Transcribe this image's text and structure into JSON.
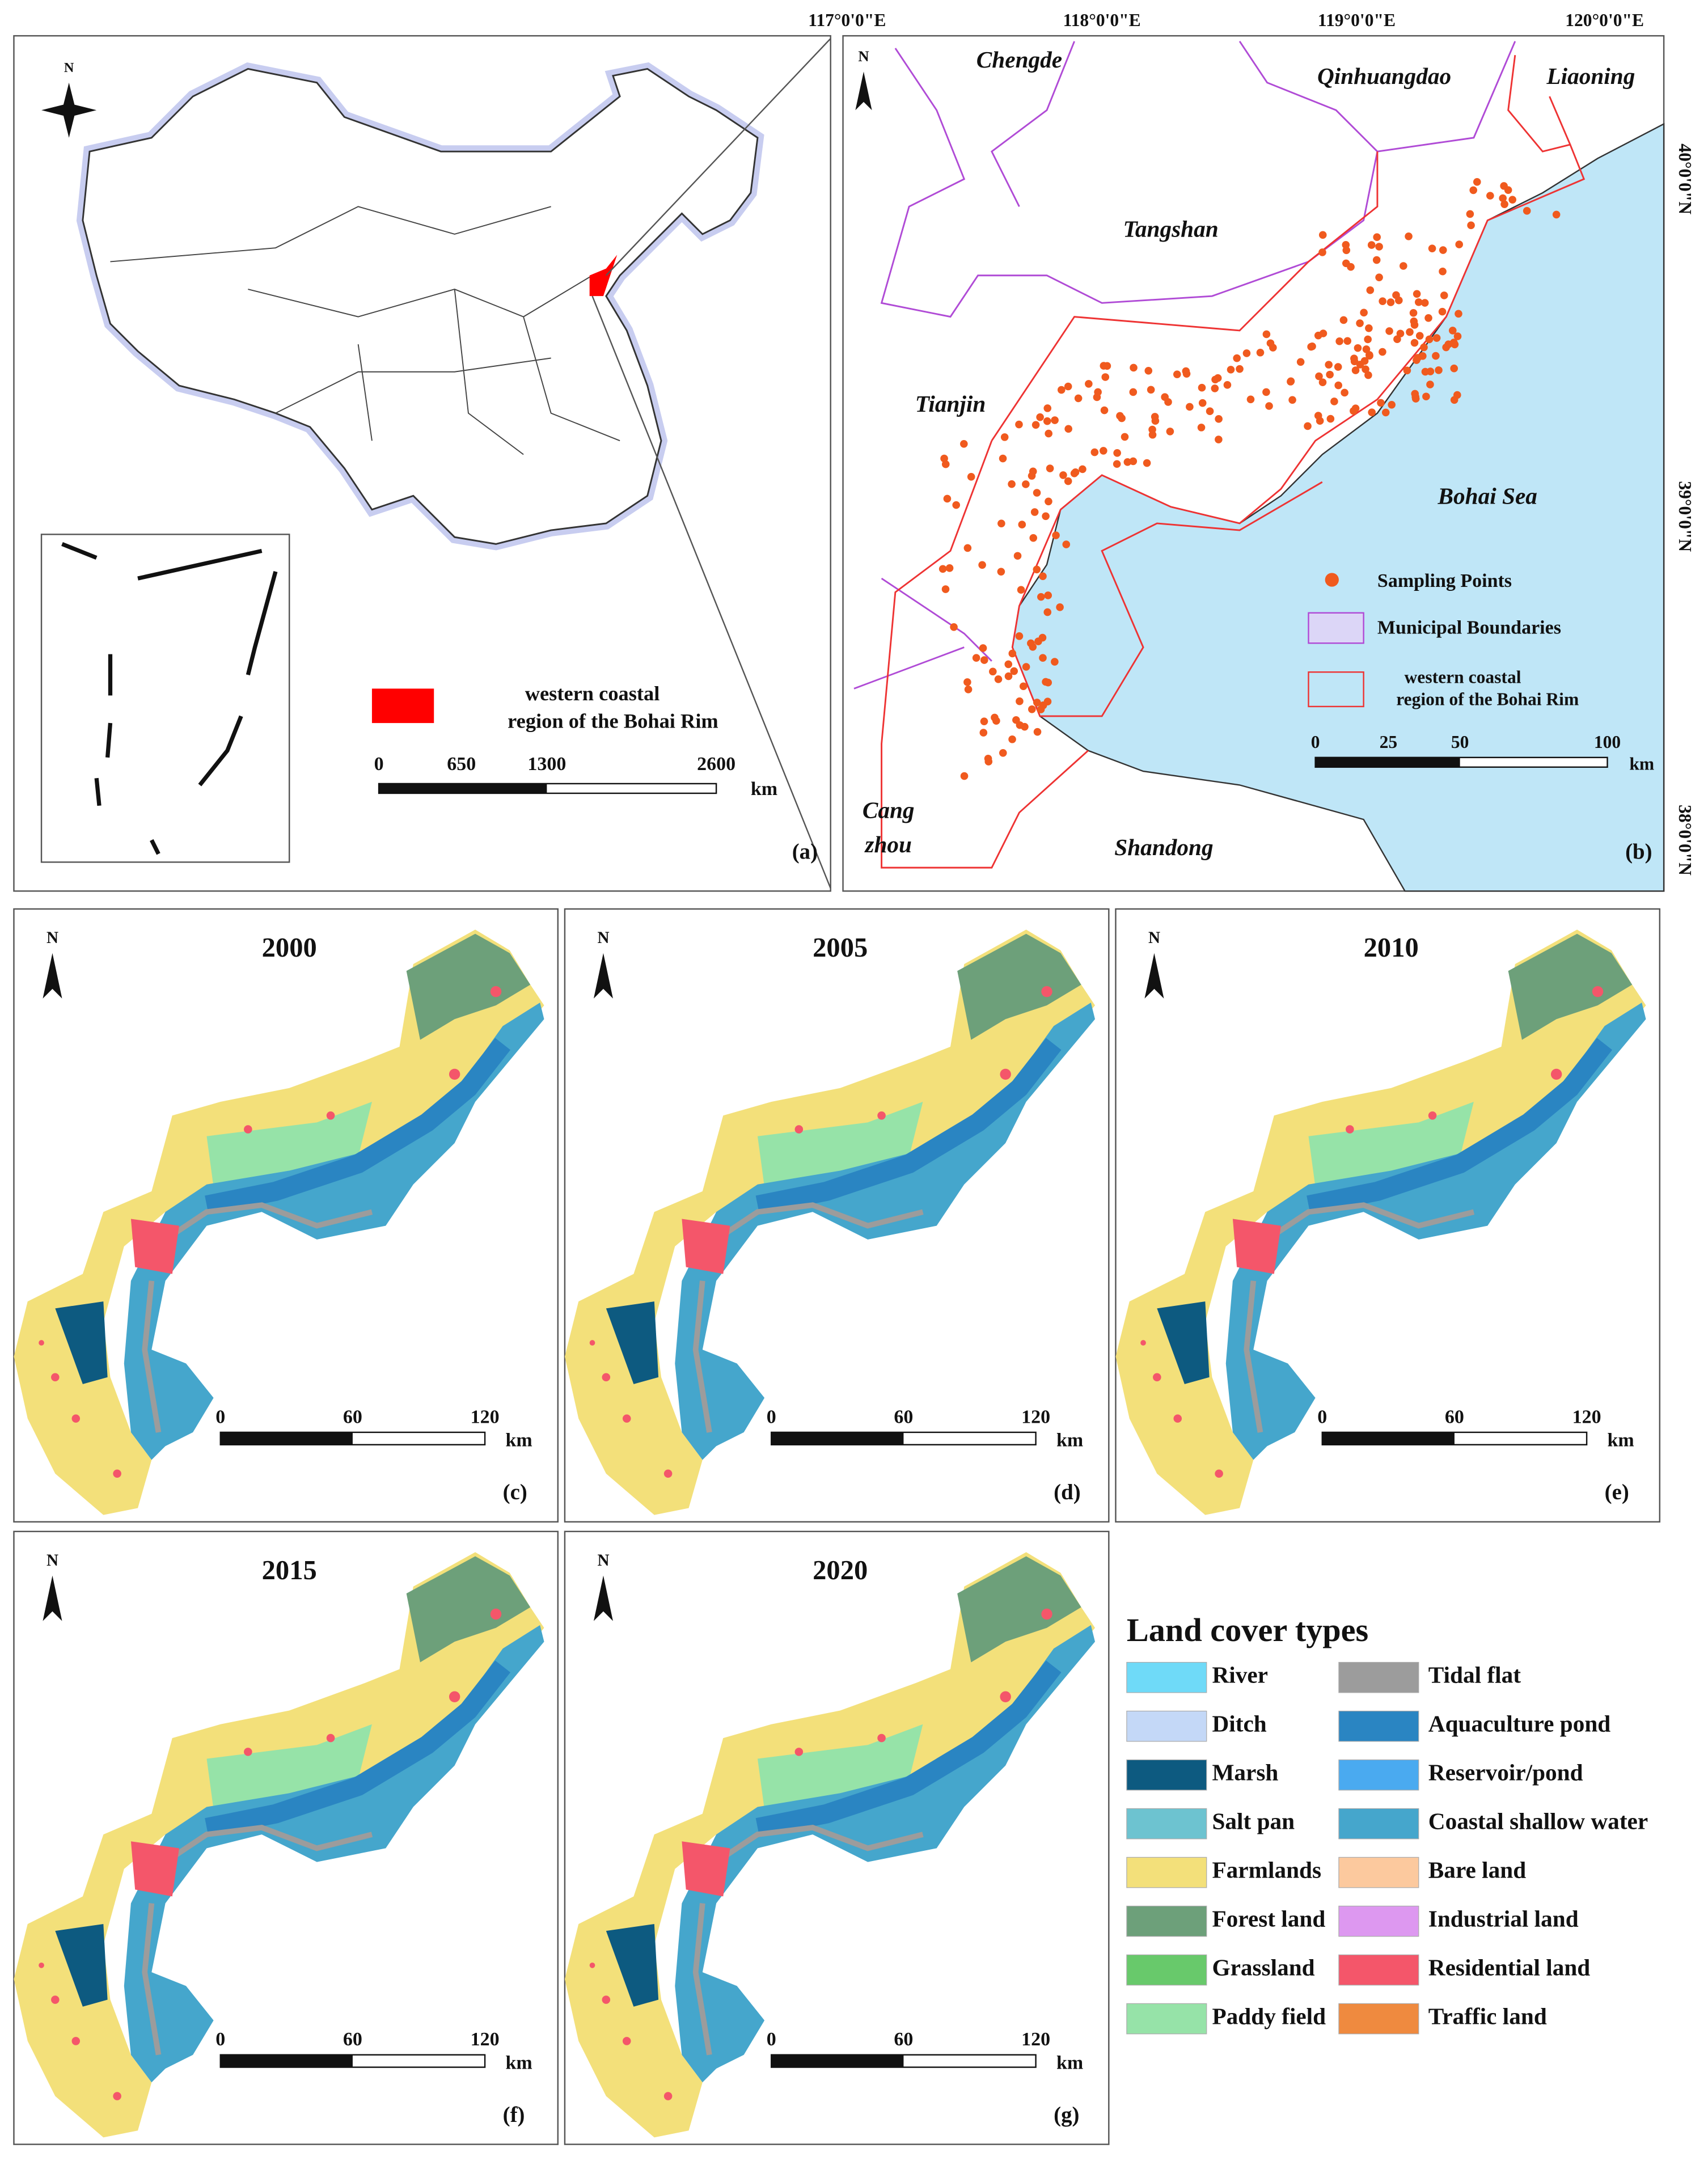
{
  "panel_a": {
    "north": "N",
    "legend_label": [
      "western coastal",
      "region of the Bohai Rim"
    ],
    "scale_labels": [
      "0",
      "650",
      "1300",
      "2600"
    ],
    "scale_unit": "km",
    "label": "(a)"
  },
  "panel_b": {
    "north": "N",
    "longitudes": [
      "117°0'0\"E",
      "118°0'0\"E",
      "119°0'0\"E",
      "120°0'0\"E"
    ],
    "latitudes": [
      "40°0'0\"N",
      "39°0'0\"N",
      "38°0'0\"N"
    ],
    "places": [
      "Chengde",
      "Qinhuangdao",
      "Liaoning",
      "Tangshan",
      "Tianjin",
      "Bohai Sea",
      "Cang",
      "zhou",
      "Shandong"
    ],
    "legend": [
      "Sampling Points",
      "Municipal Boundaries",
      "western coastal",
      "region of the Bohai Rim"
    ],
    "scale_labels": [
      "0",
      "25",
      "50",
      "100"
    ],
    "scale_unit": "km",
    "label": "(b)"
  },
  "maps": [
    {
      "year": "2000",
      "label": "(c)"
    },
    {
      "year": "2005",
      "label": "(d)"
    },
    {
      "year": "2010",
      "label": "(e)"
    },
    {
      "year": "2015",
      "label": "(f)"
    },
    {
      "year": "2020",
      "label": "(g)"
    }
  ],
  "map_scale": {
    "north": "N",
    "labels": [
      "0",
      "60",
      "120"
    ],
    "unit": "km"
  },
  "legend": {
    "title": "Land cover types",
    "items": [
      {
        "name": "River",
        "color": "#6fdaf8"
      },
      {
        "name": "Ditch",
        "color": "#c4d8f7"
      },
      {
        "name": "Marsh",
        "color": "#0d5a80"
      },
      {
        "name": "Salt pan",
        "color": "#6dc3d0"
      },
      {
        "name": "Farmlands",
        "color": "#f3e07a"
      },
      {
        "name": "Forest land",
        "color": "#6da07a"
      },
      {
        "name": "Grassland",
        "color": "#68c96b"
      },
      {
        "name": "Paddy field",
        "color": "#96e3a8"
      },
      {
        "name": "Tidal flat",
        "color": "#9c9c9c"
      },
      {
        "name": "Aquaculture pond",
        "color": "#2a85c2"
      },
      {
        "name": "Reservoir/pond",
        "color": "#4aaaf0"
      },
      {
        "name": "Coastal shallow water",
        "color": "#45a6cc"
      },
      {
        "name": "Bare land",
        "color": "#fcc99e"
      },
      {
        "name": "Industrial land",
        "color": "#dd98f0"
      },
      {
        "name": "Residential land",
        "color": "#f4566a"
      },
      {
        "name": "Traffic land",
        "color": "#ef8a3f"
      }
    ]
  }
}
